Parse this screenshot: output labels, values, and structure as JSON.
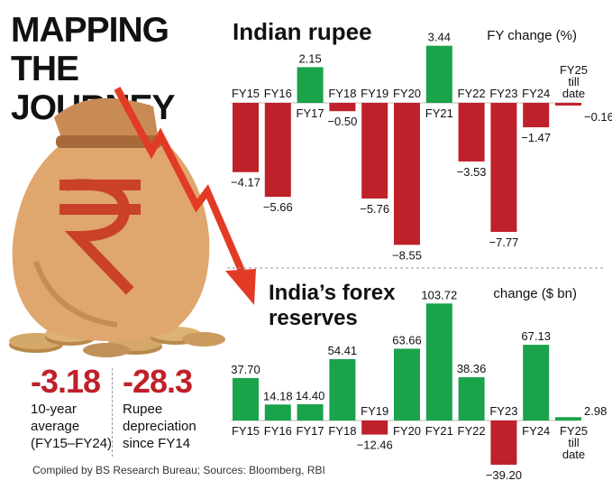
{
  "headline_line1": "MAPPING",
  "headline_line2": "THE JOURNEY",
  "stats": [
    {
      "value": "-3.18",
      "label_line1": "10-year",
      "label_line2": "average",
      "label_line3": "(FY15–FY24)"
    },
    {
      "value": "-28.3",
      "label_line1": "Rupee",
      "label_line2": "depreciation",
      "label_line3": "since FY14"
    }
  ],
  "source": "Compiled by BS Research Bureau; Sources: Bloomberg, RBI",
  "colors": {
    "positive": "#1aa34a",
    "negative": "#c0202a",
    "text": "#111111"
  },
  "icons": [
    "rupee-money-bag-icon",
    "falling-arrow-icon",
    "coin-stack-icon"
  ],
  "chart_data": [
    {
      "type": "bar",
      "title": "Indian rupee",
      "unit_label": "FY change (%)",
      "categories": [
        "FY15",
        "FY16",
        "FY17",
        "FY18",
        "FY19",
        "FY20",
        "FY21",
        "FY22",
        "FY23",
        "FY24",
        "FY25 till date"
      ],
      "category_lines": [
        [
          "FY15"
        ],
        [
          "FY16"
        ],
        [
          "FY17"
        ],
        [
          "FY18"
        ],
        [
          "FY19"
        ],
        [
          "FY20"
        ],
        [
          "FY21"
        ],
        [
          "FY22"
        ],
        [
          "FY23"
        ],
        [
          "FY24"
        ],
        [
          "FY25",
          "till",
          "date"
        ]
      ],
      "values": [
        -4.17,
        -5.66,
        2.15,
        -0.5,
        -5.76,
        -8.55,
        3.44,
        -3.53,
        -7.77,
        -1.47,
        -0.16
      ],
      "value_labels": [
        "−4.17",
        "−5.66",
        "2.15",
        "−0.50",
        "−5.76",
        "−8.55",
        "3.44",
        "−3.53",
        "−7.77",
        "−1.47",
        "−0.16"
      ]
    },
    {
      "type": "bar",
      "title_line1": "India’s forex",
      "title_line2": "reserves",
      "unit_label": "change ($ bn)",
      "categories": [
        "FY15",
        "FY16",
        "FY17",
        "FY18",
        "FY19",
        "FY20",
        "FY21",
        "FY22",
        "FY23",
        "FY24",
        "FY25 till date"
      ],
      "category_lines": [
        [
          "FY15"
        ],
        [
          "FY16"
        ],
        [
          "FY17"
        ],
        [
          "FY18"
        ],
        [
          "FY19"
        ],
        [
          "FY20"
        ],
        [
          "FY21"
        ],
        [
          "FY22"
        ],
        [
          "FY23"
        ],
        [
          "FY24"
        ],
        [
          "FY25",
          "till",
          "date"
        ]
      ],
      "values": [
        37.7,
        14.18,
        14.4,
        54.41,
        -12.46,
        63.66,
        103.72,
        38.36,
        -39.2,
        67.13,
        2.98
      ],
      "value_labels": [
        "37.70",
        "14.18",
        "14.40",
        "54.41",
        "−12.46",
        "63.66",
        "103.72",
        "38.36",
        "−39.20",
        "67.13",
        "2.98"
      ]
    }
  ]
}
